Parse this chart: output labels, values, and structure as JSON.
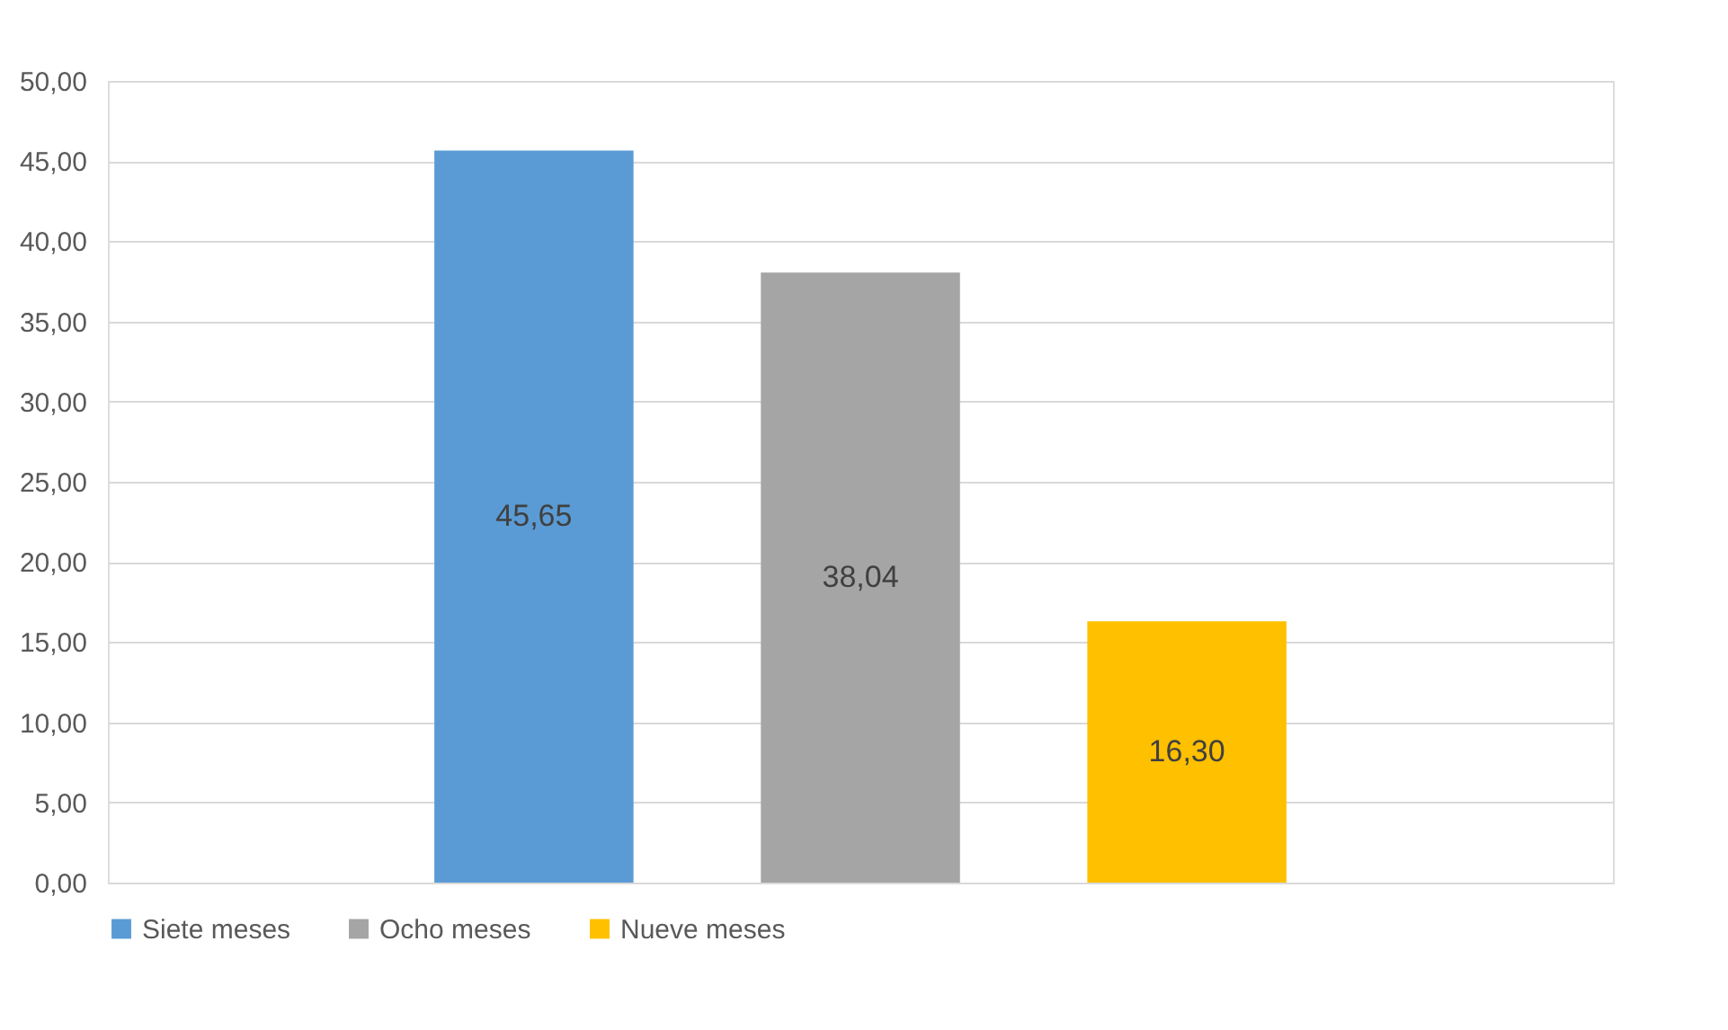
{
  "chart_data": {
    "type": "bar",
    "categories": [
      null
    ],
    "series": [
      {
        "name": "Siete meses",
        "color": "#5b9bd5",
        "values": [
          45.65
        ],
        "value_labels": [
          "45,65"
        ]
      },
      {
        "name": "Ocho meses",
        "color": "#a5a5a5",
        "values": [
          38.04
        ],
        "value_labels": [
          "38,04"
        ]
      },
      {
        "name": "Nueve meses",
        "color": "#ffc000",
        "values": [
          16.3
        ],
        "value_labels": [
          "16,30"
        ]
      }
    ],
    "ylim": [
      0,
      50
    ],
    "yticks": [
      {
        "value": 0,
        "label": "0,00"
      },
      {
        "value": 5,
        "label": "5,00"
      },
      {
        "value": 10,
        "label": "10,00"
      },
      {
        "value": 15,
        "label": "15,00"
      },
      {
        "value": 20,
        "label": "20,00"
      },
      {
        "value": 25,
        "label": "25,00"
      },
      {
        "value": 30,
        "label": "30,00"
      },
      {
        "value": 35,
        "label": "35,00"
      },
      {
        "value": 40,
        "label": "40,00"
      },
      {
        "value": 45,
        "label": "45,00"
      },
      {
        "value": 50,
        "label": "50,00"
      }
    ],
    "grid": "y",
    "legend": "bottom"
  }
}
